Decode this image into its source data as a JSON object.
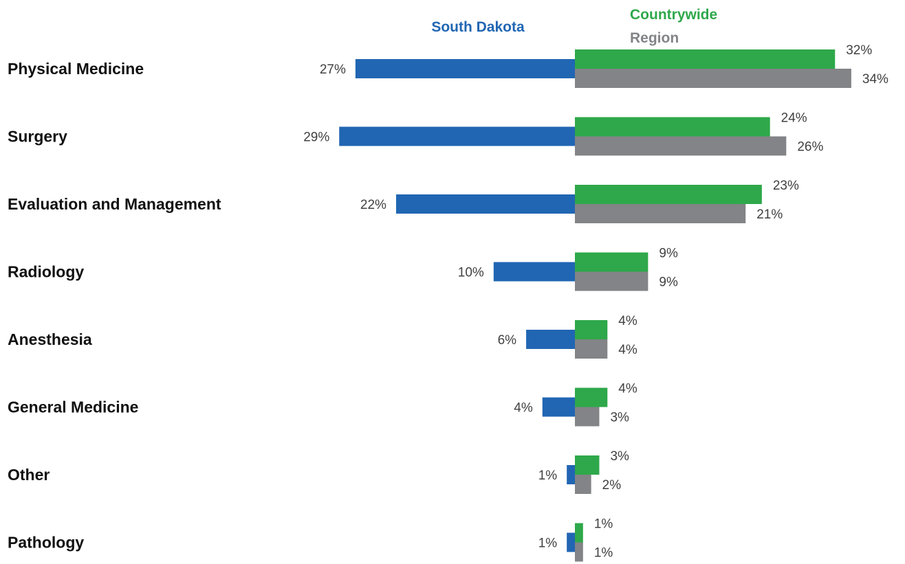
{
  "chart_data": {
    "type": "bar",
    "orientation": "horizontal-butterfly",
    "categories": [
      "Physical Medicine",
      "Surgery",
      "Evaluation and Management",
      "Radiology",
      "Anesthesia",
      "General Medicine",
      "Other",
      "Pathology"
    ],
    "series": [
      {
        "name": "South Dakota",
        "side": "left",
        "color": "#2166b3",
        "values": [
          27,
          29,
          22,
          10,
          6,
          4,
          1,
          1
        ],
        "labels": [
          "27%",
          "29%",
          "22%",
          "10%",
          "6%",
          "4%",
          "1%",
          "1%"
        ]
      },
      {
        "name": "Countrywide",
        "side": "right",
        "color": "#2ea84a",
        "values": [
          32,
          24,
          23,
          9,
          4,
          4,
          3,
          1
        ],
        "labels": [
          "32%",
          "24%",
          "23%",
          "9%",
          "4%",
          "4%",
          "3%",
          "1%"
        ]
      },
      {
        "name": "Region",
        "side": "right",
        "color": "#838487",
        "values": [
          34,
          26,
          21,
          9,
          4,
          3,
          2,
          1
        ],
        "labels": [
          "34%",
          "26%",
          "21%",
          "9%",
          "4%",
          "3%",
          "2%",
          "1%"
        ]
      }
    ],
    "unit": "%",
    "xlim": [
      0,
      35
    ],
    "grid": false,
    "legend_position": "top"
  }
}
